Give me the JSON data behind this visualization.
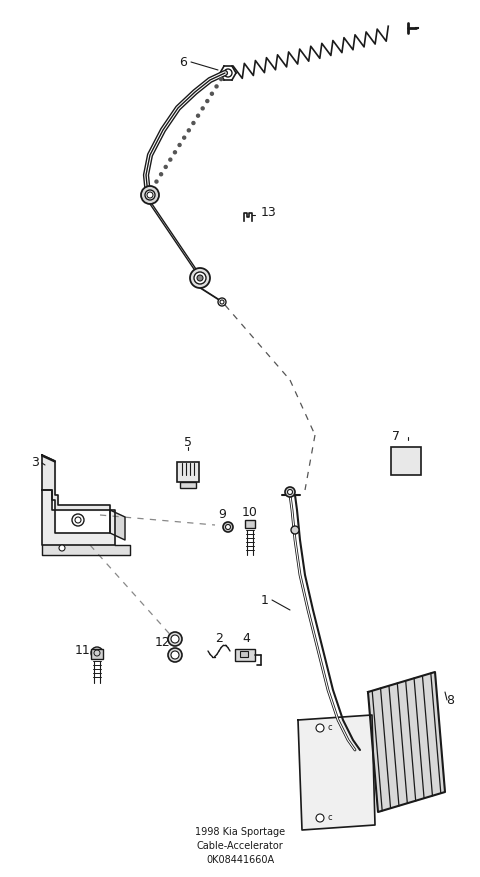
{
  "bg_color": "#ffffff",
  "line_color": "#1a1a1a",
  "text_color": "#1a1a1a",
  "title": "1998 Kia Sportage\nCable-Accelerator\n0K08441660A",
  "figsize": [
    4.8,
    8.77
  ],
  "dpi": 100,
  "xlim": [
    0,
    480
  ],
  "ylim": [
    0,
    877
  ]
}
